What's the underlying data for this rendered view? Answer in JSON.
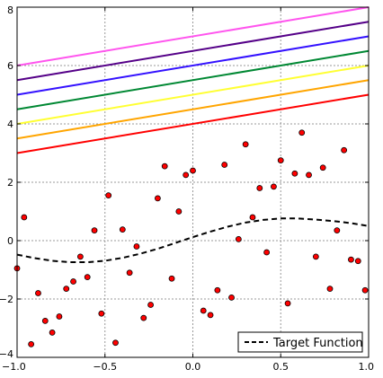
{
  "chart_data": {
    "type": "scatter",
    "title": "",
    "xlabel": "",
    "ylabel": "",
    "xlim": [
      -1.0,
      1.0
    ],
    "ylim": [
      -4,
      8
    ],
    "x_ticks": [
      -1.0,
      -0.5,
      0.0,
      0.5,
      1.0
    ],
    "x_tick_labels": [
      "−1.0",
      "−0.5",
      "0.0",
      "0.5",
      "1.0"
    ],
    "y_ticks": [
      -4,
      -2,
      0,
      2,
      4,
      6,
      8
    ],
    "y_tick_labels": [
      "−4",
      "−2",
      "0",
      "2",
      "4",
      "6",
      "8"
    ],
    "grid": true,
    "legend": {
      "position": "bottom-right",
      "entries": [
        "Target Function"
      ]
    },
    "points_color": "#ff0000",
    "points": [
      {
        "x": -1.0,
        "y": -0.95
      },
      {
        "x": -0.96,
        "y": 0.8
      },
      {
        "x": -0.92,
        "y": -3.55
      },
      {
        "x": -0.88,
        "y": -1.8
      },
      {
        "x": -0.84,
        "y": -2.75
      },
      {
        "x": -0.8,
        "y": -3.15
      },
      {
        "x": -0.76,
        "y": -2.6
      },
      {
        "x": -0.72,
        "y": -1.65
      },
      {
        "x": -0.68,
        "y": -1.4
      },
      {
        "x": -0.64,
        "y": -0.55
      },
      {
        "x": -0.6,
        "y": -1.25
      },
      {
        "x": -0.56,
        "y": 0.35
      },
      {
        "x": -0.52,
        "y": -2.5
      },
      {
        "x": -0.48,
        "y": 1.55
      },
      {
        "x": -0.44,
        "y": -3.5
      },
      {
        "x": -0.4,
        "y": 0.38
      },
      {
        "x": -0.36,
        "y": -1.1
      },
      {
        "x": -0.32,
        "y": -0.2
      },
      {
        "x": -0.28,
        "y": -2.65
      },
      {
        "x": -0.24,
        "y": -2.2
      },
      {
        "x": -0.2,
        "y": 1.45
      },
      {
        "x": -0.16,
        "y": 2.55
      },
      {
        "x": -0.12,
        "y": -1.3
      },
      {
        "x": -0.08,
        "y": 1.0
      },
      {
        "x": -0.04,
        "y": 2.25
      },
      {
        "x": 0.0,
        "y": 2.4
      },
      {
        "x": 0.06,
        "y": -2.4
      },
      {
        "x": 0.1,
        "y": -2.55
      },
      {
        "x": 0.14,
        "y": -1.7
      },
      {
        "x": 0.18,
        "y": 2.6
      },
      {
        "x": 0.22,
        "y": -1.95
      },
      {
        "x": 0.26,
        "y": 0.05
      },
      {
        "x": 0.3,
        "y": 3.3
      },
      {
        "x": 0.34,
        "y": 0.8
      },
      {
        "x": 0.38,
        "y": 1.8
      },
      {
        "x": 0.42,
        "y": -0.4
      },
      {
        "x": 0.46,
        "y": 1.85
      },
      {
        "x": 0.5,
        "y": 2.75
      },
      {
        "x": 0.54,
        "y": -2.15
      },
      {
        "x": 0.58,
        "y": 2.3
      },
      {
        "x": 0.62,
        "y": 3.7
      },
      {
        "x": 0.66,
        "y": 2.25
      },
      {
        "x": 0.7,
        "y": -0.55
      },
      {
        "x": 0.74,
        "y": 2.5
      },
      {
        "x": 0.78,
        "y": -1.65
      },
      {
        "x": 0.82,
        "y": 0.35
      },
      {
        "x": 0.86,
        "y": 3.1
      },
      {
        "x": 0.9,
        "y": -0.65
      },
      {
        "x": 0.94,
        "y": -0.7
      },
      {
        "x": 0.98,
        "y": -1.7
      }
    ],
    "target_function": {
      "name": "Target Function",
      "style": "dashed",
      "color": "#000000",
      "x": [
        -1.0,
        -0.9,
        -0.8,
        -0.7,
        -0.6,
        -0.5,
        -0.4,
        -0.3,
        -0.2,
        -0.1,
        0.0,
        0.1,
        0.2,
        0.3,
        0.4,
        0.5,
        0.6,
        0.7,
        0.8,
        0.9,
        1.0
      ],
      "y": [
        -0.48,
        -0.6,
        -0.69,
        -0.74,
        -0.74,
        -0.69,
        -0.59,
        -0.45,
        -0.28,
        -0.08,
        0.12,
        0.31,
        0.48,
        0.62,
        0.71,
        0.76,
        0.76,
        0.72,
        0.67,
        0.6,
        0.5
      ]
    },
    "lines": [
      {
        "color": "#ff0000",
        "x": [
          -1.0,
          1.0
        ],
        "y": [
          3.0,
          5.0
        ]
      },
      {
        "color": "#ffa500",
        "x": [
          -1.0,
          1.0
        ],
        "y": [
          3.5,
          5.5
        ]
      },
      {
        "color": "#ffff33",
        "x": [
          -1.0,
          1.0
        ],
        "y": [
          4.0,
          6.0
        ]
      },
      {
        "color": "#008833",
        "x": [
          -1.0,
          1.0
        ],
        "y": [
          4.5,
          6.5
        ]
      },
      {
        "color": "#3311ff",
        "x": [
          -1.0,
          1.0
        ],
        "y": [
          5.0,
          7.0
        ]
      },
      {
        "color": "#550088",
        "x": [
          -1.0,
          1.0
        ],
        "y": [
          5.5,
          7.5
        ]
      },
      {
        "color": "#ff55ee",
        "x": [
          -1.0,
          1.0
        ],
        "y": [
          6.0,
          8.0
        ]
      }
    ]
  }
}
